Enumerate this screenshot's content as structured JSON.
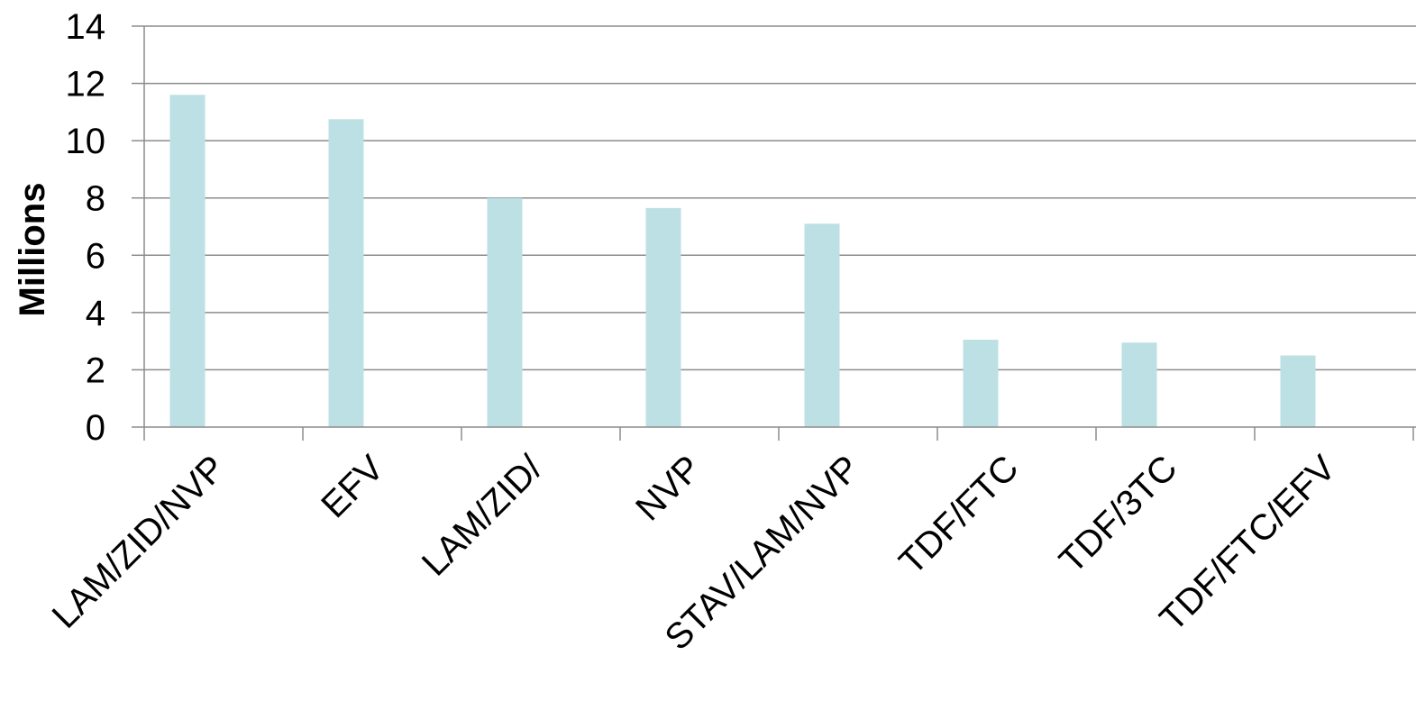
{
  "chart_data": {
    "type": "bar",
    "title": "",
    "xlabel": "",
    "ylabel": "Millions",
    "ylim": [
      0,
      14
    ],
    "yticks": [
      0,
      2,
      4,
      6,
      8,
      10,
      12,
      14
    ],
    "grid": true,
    "legend": "none",
    "categories": [
      "LAM/ZID/NVP",
      "EFV",
      "LAM/ZID/",
      "NVP",
      "STAV/LAM/NVP",
      "TDF/FTC",
      "TDF/3TC",
      "TDF/FTC/EFV"
    ],
    "values": [
      11.6,
      10.75,
      8.0,
      7.65,
      7.1,
      3.05,
      2.95,
      2.5
    ],
    "colors": {
      "bar": "#bce0e3",
      "grid": "#8c8c8c",
      "axis": "#8c8c8c",
      "text": "#000000"
    }
  }
}
